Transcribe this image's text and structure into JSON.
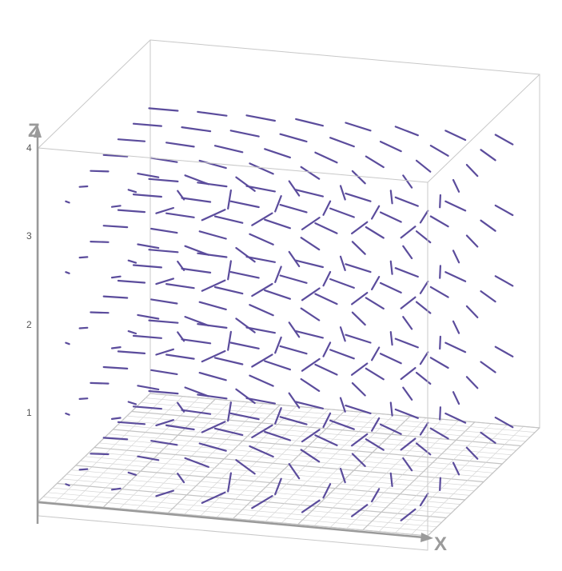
{
  "chart_data": {
    "type": "3d-vector-field",
    "title": "",
    "x_axis": {
      "label": "X"
    },
    "y_axis": {
      "label": ""
    },
    "z_axis": {
      "label": "Z",
      "ticks": [
        "1",
        "2",
        "3",
        "4"
      ],
      "range": [
        0,
        4
      ]
    },
    "vector_color": "#5b4c9c",
    "grid": {
      "floor_plane": true,
      "color": "#d6d6d6"
    },
    "bounding_box": true,
    "grid_x_samples": 8,
    "grid_y_samples": 7,
    "grid_z_samples": 5
  }
}
